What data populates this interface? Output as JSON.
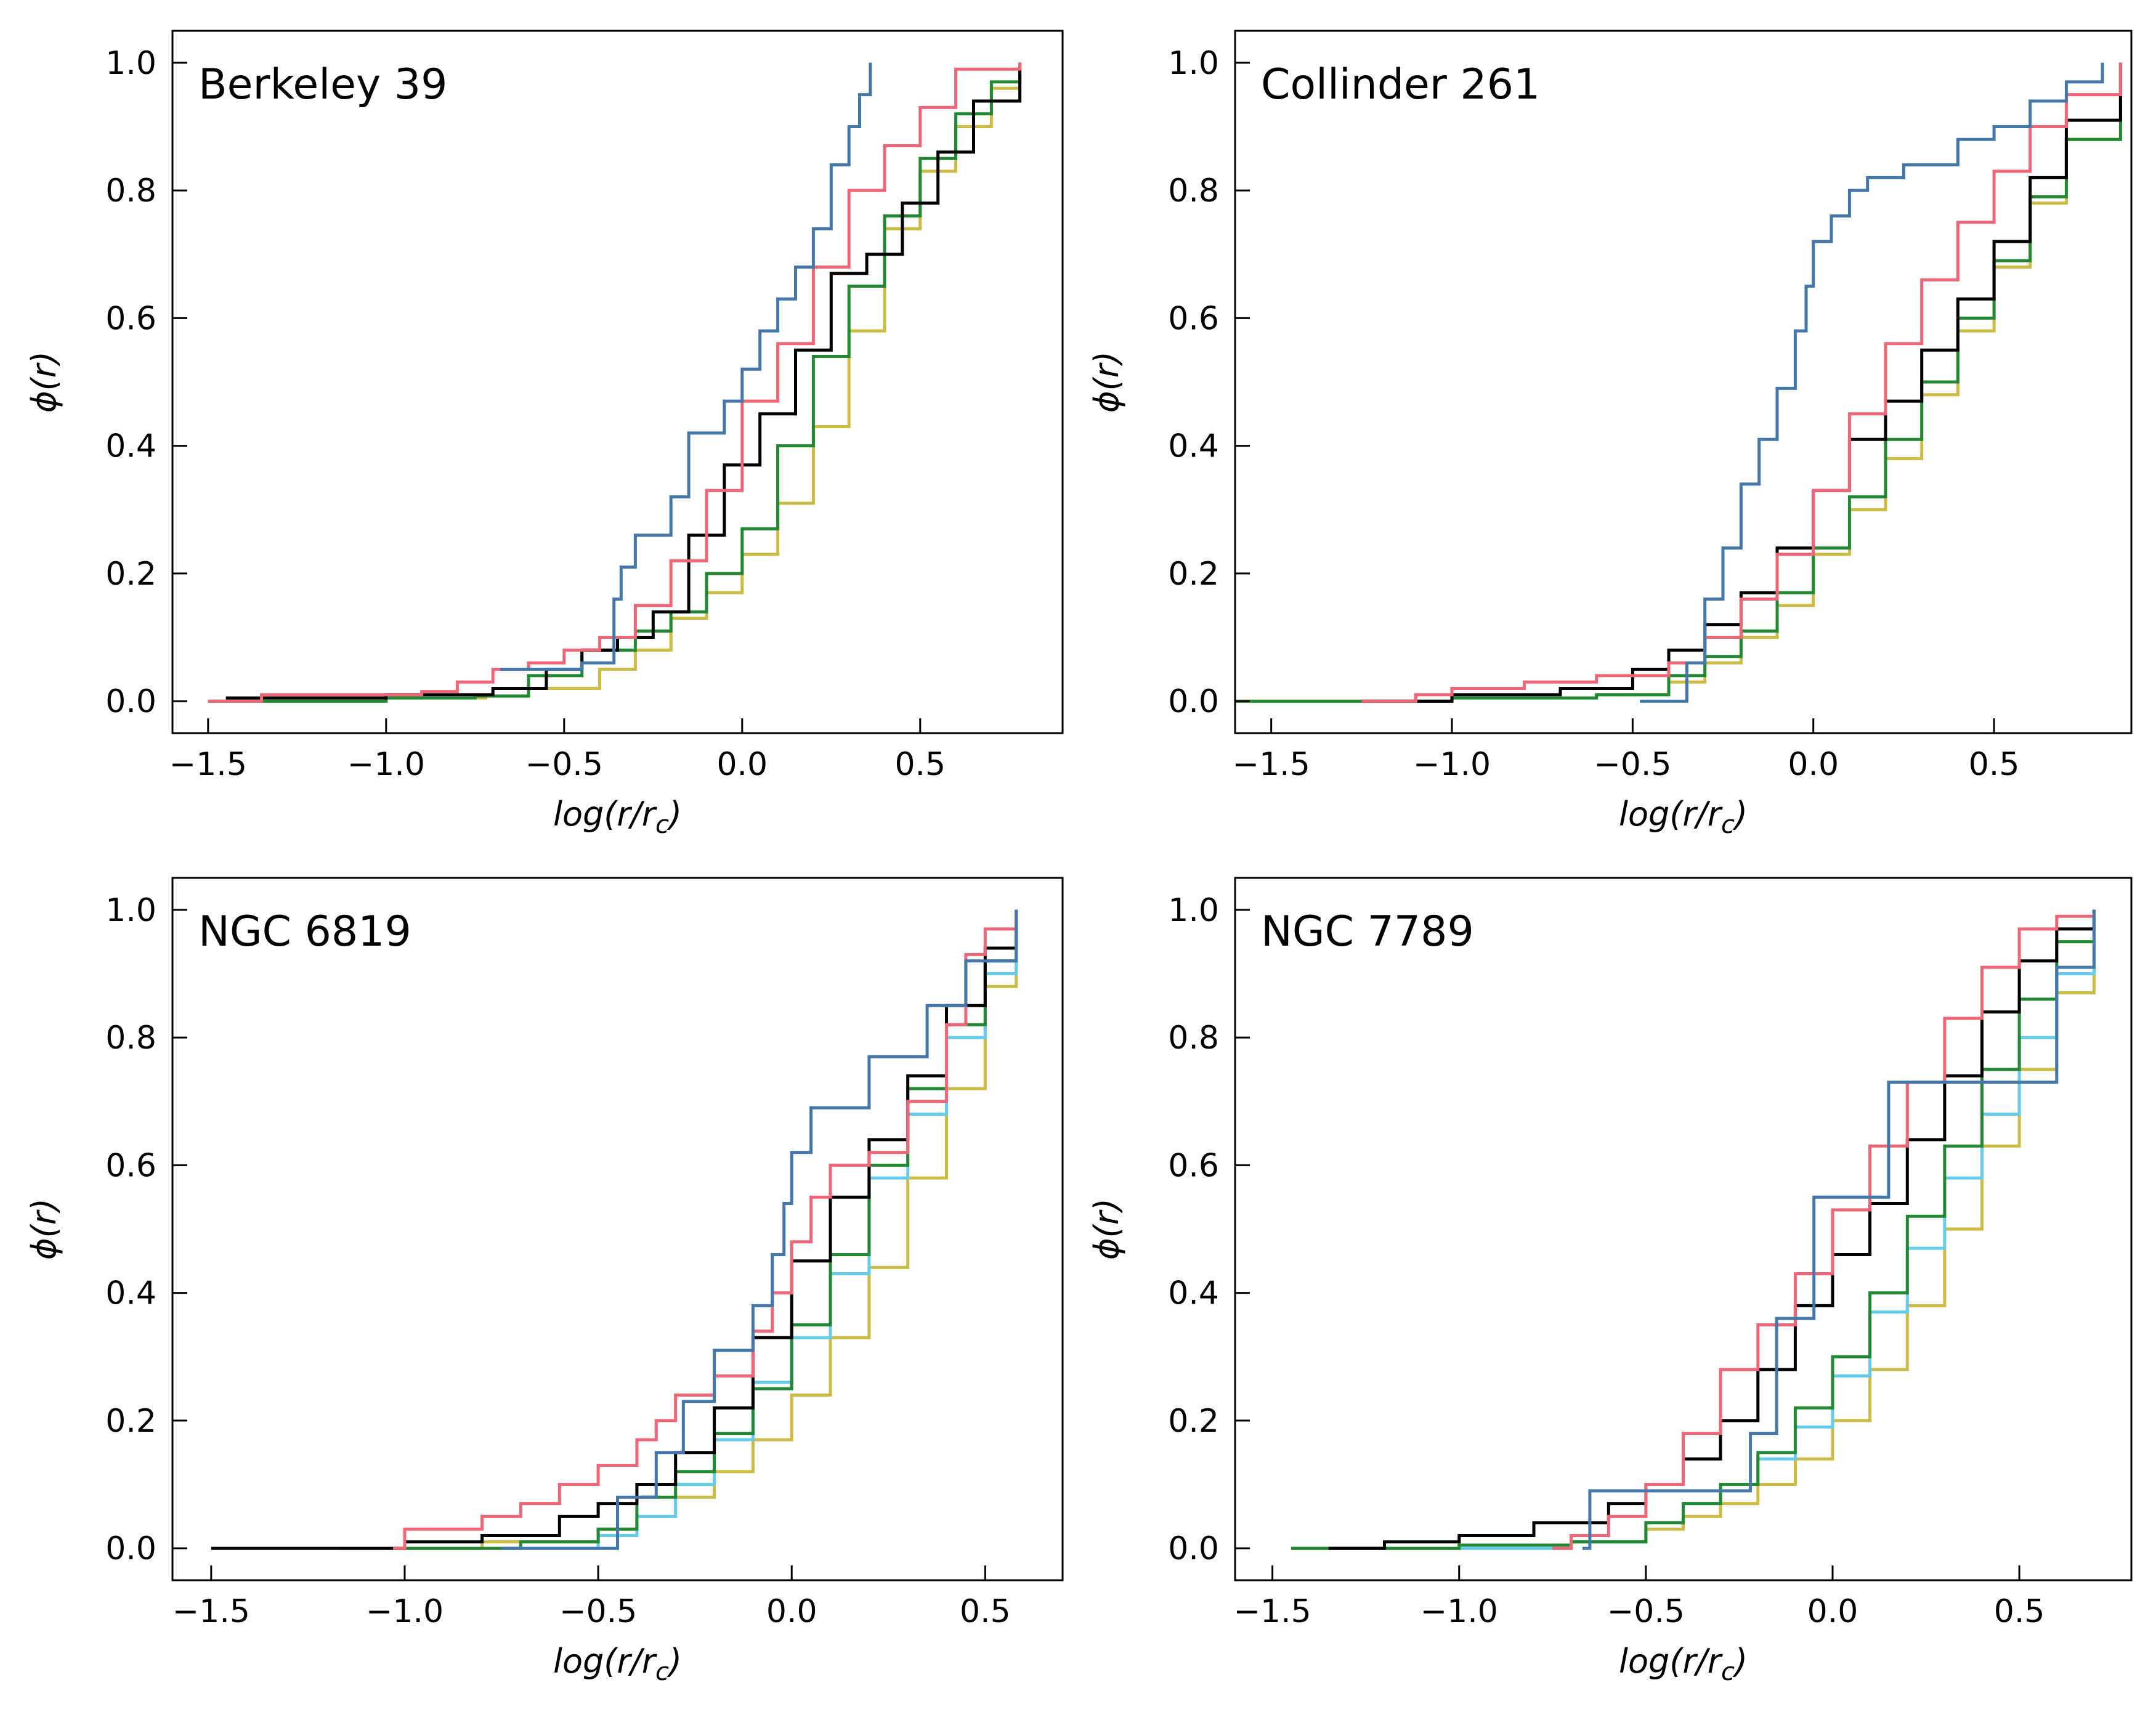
{
  "figure": {
    "background": "#ffffff"
  },
  "series_colors": {
    "blue": "#4477aa",
    "red": "#ee6677",
    "cyan": "#66ccee",
    "green": "#228833",
    "yellow": "#ccbb44",
    "black": "#000000"
  },
  "chart_data": [
    {
      "type": "line",
      "title": "Berkeley 39",
      "xlabel": "log(r/r_c)",
      "ylabel": "ϕ(r)",
      "xlim": [
        -1.6,
        0.9
      ],
      "ylim": [
        -0.05,
        1.05
      ],
      "xticks": [
        -1.5,
        -1.0,
        -0.5,
        0.0,
        0.5
      ],
      "xtick_labels": [
        "−1.5",
        "−1.0",
        "−0.5",
        "0.0",
        "0.5"
      ],
      "yticks": [
        0.0,
        0.2,
        0.4,
        0.6,
        0.8,
        1.0
      ],
      "ytick_labels": [
        "0.0",
        "0.2",
        "0.4",
        "0.6",
        "0.8",
        "1.0"
      ],
      "grid": false,
      "series": [
        {
          "color": "yellow",
          "x": [
            -1.5,
            -1.0,
            -0.72,
            -0.6,
            -0.4,
            -0.3,
            -0.2,
            -0.1,
            0.0,
            0.1,
            0.2,
            0.3,
            0.4,
            0.5,
            0.6,
            0.7,
            0.78
          ],
          "y": [
            0.0,
            0.005,
            0.008,
            0.02,
            0.05,
            0.08,
            0.13,
            0.17,
            0.23,
            0.31,
            0.43,
            0.58,
            0.74,
            0.83,
            0.9,
            0.96,
            1.0
          ]
        },
        {
          "color": "green",
          "x": [
            -1.5,
            -1.0,
            -0.75,
            -0.6,
            -0.45,
            -0.3,
            -0.2,
            -0.1,
            0.0,
            0.1,
            0.2,
            0.3,
            0.4,
            0.5,
            0.6,
            0.7,
            0.78
          ],
          "y": [
            0.0,
            0.005,
            0.008,
            0.04,
            0.08,
            0.11,
            0.14,
            0.2,
            0.27,
            0.4,
            0.54,
            0.65,
            0.76,
            0.85,
            0.92,
            0.97,
            1.0
          ]
        },
        {
          "color": "black",
          "x": [
            -1.45,
            -1.0,
            -0.7,
            -0.55,
            -0.45,
            -0.35,
            -0.25,
            -0.15,
            -0.05,
            0.05,
            0.15,
            0.25,
            0.35,
            0.45,
            0.55,
            0.65,
            0.78
          ],
          "y": [
            0.005,
            0.01,
            0.02,
            0.05,
            0.08,
            0.1,
            0.14,
            0.26,
            0.37,
            0.45,
            0.55,
            0.67,
            0.7,
            0.78,
            0.86,
            0.94,
            1.0
          ]
        },
        {
          "color": "red",
          "x": [
            -1.5,
            -1.35,
            -1.0,
            -0.9,
            -0.8,
            -0.7,
            -0.6,
            -0.5,
            -0.4,
            -0.3,
            -0.2,
            -0.1,
            0.0,
            0.1,
            0.2,
            0.3,
            0.4,
            0.5,
            0.6,
            0.78
          ],
          "y": [
            0.0,
            0.01,
            0.01,
            0.015,
            0.03,
            0.05,
            0.06,
            0.08,
            0.1,
            0.15,
            0.22,
            0.33,
            0.47,
            0.56,
            0.68,
            0.8,
            0.87,
            0.93,
            0.99,
            1.0
          ]
        },
        {
          "color": "blue",
          "x": [
            -0.68,
            -0.6,
            -0.45,
            -0.36,
            -0.34,
            -0.3,
            -0.2,
            -0.15,
            -0.05,
            0.0,
            0.05,
            0.1,
            0.15,
            0.2,
            0.25,
            0.3,
            0.33,
            0.36
          ],
          "y": [
            0.05,
            0.05,
            0.06,
            0.16,
            0.21,
            0.26,
            0.32,
            0.42,
            0.47,
            0.52,
            0.58,
            0.63,
            0.68,
            0.74,
            0.84,
            0.9,
            0.95,
            1.0
          ]
        }
      ]
    },
    {
      "type": "line",
      "title": "Collinder 261",
      "xlabel": "log(r/r_c)",
      "ylabel": "ϕ(r)",
      "xlim": [
        -1.6,
        0.88
      ],
      "ylim": [
        -0.05,
        1.05
      ],
      "xticks": [
        -1.5,
        -1.0,
        -0.5,
        0.0,
        0.5
      ],
      "xtick_labels": [
        "−1.5",
        "−1.0",
        "−0.5",
        "0.0",
        "0.5"
      ],
      "yticks": [
        0.0,
        0.2,
        0.4,
        0.6,
        0.8,
        1.0
      ],
      "ytick_labels": [
        "0.0",
        "0.2",
        "0.4",
        "0.6",
        "0.8",
        "1.0"
      ],
      "grid": false,
      "series": [
        {
          "color": "yellow",
          "x": [
            -1.6,
            -1.0,
            -0.6,
            -0.4,
            -0.3,
            -0.2,
            -0.1,
            0.0,
            0.1,
            0.2,
            0.3,
            0.4,
            0.5,
            0.6,
            0.7,
            0.85
          ],
          "y": [
            0.0,
            0.005,
            0.01,
            0.03,
            0.06,
            0.1,
            0.15,
            0.23,
            0.3,
            0.38,
            0.48,
            0.58,
            0.68,
            0.78,
            0.88,
            1.0
          ]
        },
        {
          "color": "green",
          "x": [
            -1.6,
            -1.0,
            -0.6,
            -0.4,
            -0.3,
            -0.2,
            -0.1,
            0.0,
            0.1,
            0.2,
            0.3,
            0.4,
            0.5,
            0.6,
            0.7,
            0.85
          ],
          "y": [
            0.0,
            0.005,
            0.01,
            0.04,
            0.07,
            0.11,
            0.17,
            0.24,
            0.32,
            0.41,
            0.5,
            0.6,
            0.69,
            0.79,
            0.88,
            1.0
          ]
        },
        {
          "color": "black",
          "x": [
            -1.25,
            -1.0,
            -0.7,
            -0.5,
            -0.4,
            -0.3,
            -0.2,
            -0.1,
            0.0,
            0.1,
            0.2,
            0.3,
            0.4,
            0.5,
            0.6,
            0.7,
            0.85
          ],
          "y": [
            0.0,
            0.01,
            0.02,
            0.05,
            0.08,
            0.12,
            0.17,
            0.24,
            0.33,
            0.41,
            0.47,
            0.55,
            0.63,
            0.72,
            0.82,
            0.91,
            1.0
          ]
        },
        {
          "color": "red",
          "x": [
            -1.25,
            -1.1,
            -1.0,
            -0.8,
            -0.6,
            -0.4,
            -0.3,
            -0.2,
            -0.1,
            0.0,
            0.1,
            0.2,
            0.3,
            0.4,
            0.5,
            0.6,
            0.7,
            0.85
          ],
          "y": [
            0.0,
            0.01,
            0.02,
            0.03,
            0.04,
            0.06,
            0.1,
            0.16,
            0.23,
            0.33,
            0.45,
            0.56,
            0.66,
            0.75,
            0.83,
            0.9,
            0.95,
            1.0
          ]
        },
        {
          "color": "blue",
          "x": [
            -0.48,
            -0.35,
            -0.3,
            -0.25,
            -0.2,
            -0.15,
            -0.1,
            -0.05,
            -0.02,
            0.0,
            0.05,
            0.1,
            0.15,
            0.25,
            0.4,
            0.5,
            0.6,
            0.7,
            0.8
          ],
          "y": [
            0.0,
            0.06,
            0.16,
            0.24,
            0.34,
            0.41,
            0.49,
            0.58,
            0.65,
            0.72,
            0.76,
            0.8,
            0.82,
            0.84,
            0.88,
            0.9,
            0.94,
            0.97,
            1.0
          ]
        }
      ]
    },
    {
      "type": "line",
      "title": "NGC 6819",
      "xlabel": "log(r/r_c)",
      "ylabel": "ϕ(r)",
      "xlim": [
        -1.6,
        0.7
      ],
      "ylim": [
        -0.05,
        1.05
      ],
      "xticks": [
        -1.5,
        -1.0,
        -0.5,
        0.0,
        0.5
      ],
      "xtick_labels": [
        "−1.5",
        "−1.0",
        "−0.5",
        "0.0",
        "0.5"
      ],
      "yticks": [
        0.0,
        0.2,
        0.4,
        0.6,
        0.8,
        1.0
      ],
      "ytick_labels": [
        "0.0",
        "0.2",
        "0.4",
        "0.6",
        "0.8",
        "1.0"
      ],
      "grid": false,
      "series": [
        {
          "color": "yellow",
          "x": [
            -1.17,
            -0.8,
            -0.5,
            -0.4,
            -0.3,
            -0.2,
            -0.1,
            0.0,
            0.1,
            0.2,
            0.3,
            0.4,
            0.5,
            0.58
          ],
          "y": [
            0.0,
            0.01,
            0.03,
            0.05,
            0.08,
            0.12,
            0.17,
            0.24,
            0.33,
            0.44,
            0.58,
            0.72,
            0.88,
            1.0
          ]
        },
        {
          "color": "cyan",
          "x": [
            -0.75,
            -0.5,
            -0.4,
            -0.3,
            -0.2,
            -0.1,
            0.0,
            0.1,
            0.2,
            0.3,
            0.4,
            0.5,
            0.58
          ],
          "y": [
            0.0,
            0.02,
            0.05,
            0.1,
            0.17,
            0.26,
            0.33,
            0.43,
            0.58,
            0.68,
            0.8,
            0.9,
            1.0
          ]
        },
        {
          "color": "green",
          "x": [
            -1.0,
            -0.7,
            -0.5,
            -0.4,
            -0.3,
            -0.2,
            -0.1,
            0.0,
            0.1,
            0.2,
            0.3,
            0.4,
            0.5,
            0.58
          ],
          "y": [
            0.0,
            0.01,
            0.03,
            0.08,
            0.12,
            0.18,
            0.25,
            0.35,
            0.46,
            0.6,
            0.72,
            0.82,
            0.92,
            1.0
          ]
        },
        {
          "color": "black",
          "x": [
            -1.5,
            -1.0,
            -0.8,
            -0.6,
            -0.5,
            -0.4,
            -0.3,
            -0.2,
            -0.1,
            0.0,
            0.1,
            0.2,
            0.3,
            0.4,
            0.5,
            0.58
          ],
          "y": [
            0.0,
            0.01,
            0.02,
            0.05,
            0.07,
            0.1,
            0.15,
            0.22,
            0.33,
            0.45,
            0.55,
            0.64,
            0.74,
            0.85,
            0.94,
            1.0
          ]
        },
        {
          "color": "red",
          "x": [
            -1.03,
            -1.0,
            -0.9,
            -0.8,
            -0.7,
            -0.6,
            -0.5,
            -0.4,
            -0.35,
            -0.3,
            -0.2,
            -0.1,
            -0.05,
            0.0,
            0.05,
            0.1,
            0.2,
            0.3,
            0.4,
            0.45,
            0.5,
            0.58
          ],
          "y": [
            0.0,
            0.03,
            0.03,
            0.05,
            0.07,
            0.1,
            0.13,
            0.17,
            0.2,
            0.24,
            0.27,
            0.34,
            0.4,
            0.48,
            0.55,
            0.6,
            0.62,
            0.7,
            0.82,
            0.93,
            0.97,
            1.0
          ]
        },
        {
          "color": "blue",
          "x": [
            -0.75,
            -0.45,
            -0.35,
            -0.28,
            -0.2,
            -0.1,
            -0.05,
            -0.02,
            0.0,
            0.05,
            0.2,
            0.35,
            0.45,
            0.58
          ],
          "y": [
            0.0,
            0.08,
            0.15,
            0.23,
            0.31,
            0.38,
            0.46,
            0.54,
            0.62,
            0.69,
            0.77,
            0.85,
            0.92,
            1.0
          ]
        }
      ]
    },
    {
      "type": "line",
      "title": "NGC 7789",
      "xlabel": "log(r/r_c)",
      "ylabel": "ϕ(r)",
      "xlim": [
        -1.6,
        0.8
      ],
      "ylim": [
        -0.05,
        1.05
      ],
      "xticks": [
        -1.5,
        -1.0,
        -0.5,
        0.0,
        0.5
      ],
      "xtick_labels": [
        "−1.5",
        "−1.0",
        "−0.5",
        "0.0",
        "0.5"
      ],
      "yticks": [
        0.0,
        0.2,
        0.4,
        0.6,
        0.8,
        1.0
      ],
      "ytick_labels": [
        "0.0",
        "0.2",
        "0.4",
        "0.6",
        "0.8",
        "1.0"
      ],
      "grid": false,
      "series": [
        {
          "color": "yellow",
          "x": [
            -1.45,
            -1.0,
            -0.7,
            -0.5,
            -0.4,
            -0.3,
            -0.2,
            -0.1,
            0.0,
            0.1,
            0.2,
            0.3,
            0.4,
            0.5,
            0.6,
            0.7
          ],
          "y": [
            0.0,
            0.005,
            0.01,
            0.03,
            0.05,
            0.07,
            0.1,
            0.14,
            0.2,
            0.28,
            0.38,
            0.5,
            0.63,
            0.75,
            0.87,
            1.0
          ]
        },
        {
          "color": "cyan",
          "x": [
            -1.0,
            -0.7,
            -0.5,
            -0.4,
            -0.3,
            -0.2,
            -0.1,
            0.0,
            0.1,
            0.2,
            0.3,
            0.4,
            0.5,
            0.6,
            0.7
          ],
          "y": [
            0.0,
            0.01,
            0.04,
            0.07,
            0.1,
            0.14,
            0.19,
            0.27,
            0.37,
            0.47,
            0.58,
            0.68,
            0.8,
            0.9,
            1.0
          ]
        },
        {
          "color": "green",
          "x": [
            -1.45,
            -1.0,
            -0.7,
            -0.5,
            -0.4,
            -0.3,
            -0.2,
            -0.1,
            0.0,
            0.1,
            0.2,
            0.3,
            0.4,
            0.5,
            0.6,
            0.7
          ],
          "y": [
            0.0,
            0.005,
            0.01,
            0.04,
            0.07,
            0.1,
            0.15,
            0.22,
            0.3,
            0.4,
            0.52,
            0.63,
            0.75,
            0.86,
            0.95,
            1.0
          ]
        },
        {
          "color": "black",
          "x": [
            -1.35,
            -1.2,
            -1.0,
            -0.8,
            -0.6,
            -0.5,
            -0.4,
            -0.3,
            -0.2,
            -0.1,
            0.0,
            0.1,
            0.2,
            0.3,
            0.4,
            0.5,
            0.6,
            0.7
          ],
          "y": [
            0.0,
            0.01,
            0.02,
            0.04,
            0.07,
            0.1,
            0.14,
            0.2,
            0.28,
            0.38,
            0.46,
            0.54,
            0.64,
            0.74,
            0.84,
            0.92,
            0.97,
            1.0
          ]
        },
        {
          "color": "red",
          "x": [
            -0.75,
            -0.7,
            -0.6,
            -0.5,
            -0.4,
            -0.3,
            -0.2,
            -0.1,
            0.0,
            0.1,
            0.2,
            0.3,
            0.4,
            0.5,
            0.6,
            0.7
          ],
          "y": [
            0.0,
            0.02,
            0.05,
            0.1,
            0.18,
            0.28,
            0.35,
            0.43,
            0.53,
            0.63,
            0.73,
            0.83,
            0.91,
            0.97,
            0.99,
            1.0
          ]
        },
        {
          "color": "blue",
          "x": [
            -0.67,
            -0.65,
            -0.5,
            -0.4,
            -0.3,
            -0.22,
            -0.15,
            -0.05,
            0.15,
            0.6,
            0.7
          ],
          "y": [
            0.0,
            0.09,
            0.09,
            0.09,
            0.09,
            0.18,
            0.36,
            0.55,
            0.73,
            0.91,
            1.0
          ]
        }
      ]
    }
  ]
}
